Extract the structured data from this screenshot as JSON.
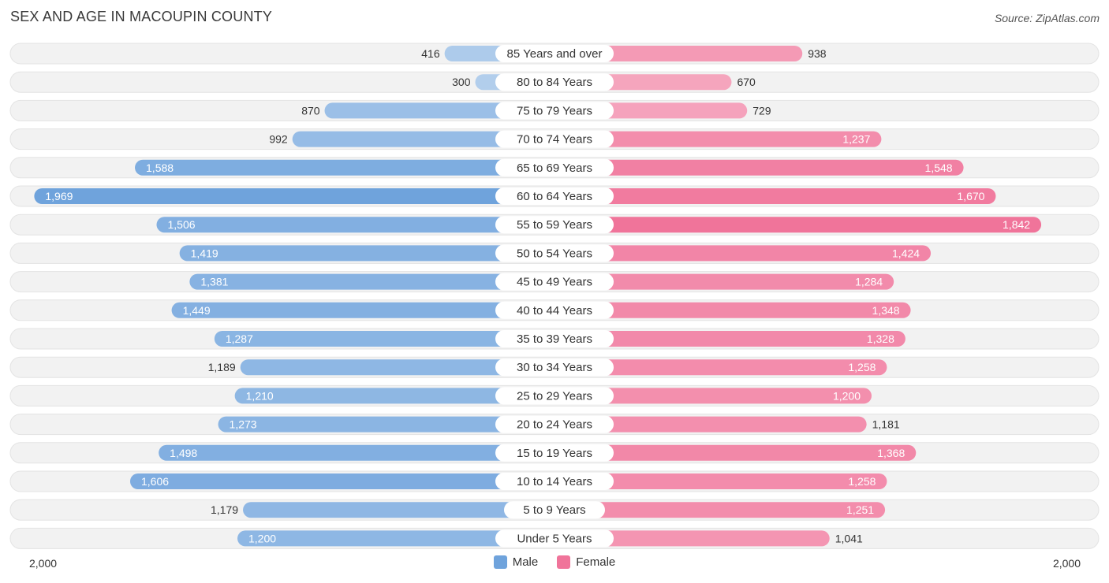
{
  "title": "SEX AND AGE IN MACOUPIN COUNTY",
  "source": "Source: ZipAtlas.com",
  "chart_data": {
    "type": "bar",
    "orientation": "horizontal-diverging",
    "categories": [
      "85 Years and over",
      "80 to 84 Years",
      "75 to 79 Years",
      "70 to 74 Years",
      "65 to 69 Years",
      "60 to 64 Years",
      "55 to 59 Years",
      "50 to 54 Years",
      "45 to 49 Years",
      "40 to 44 Years",
      "35 to 39 Years",
      "30 to 34 Years",
      "25 to 29 Years",
      "20 to 24 Years",
      "15 to 19 Years",
      "10 to 14 Years",
      "5 to 9 Years",
      "Under 5 Years"
    ],
    "series": [
      {
        "name": "Male",
        "color": "#6fa3dc",
        "values": [
          416,
          300,
          870,
          992,
          1588,
          1969,
          1506,
          1419,
          1381,
          1449,
          1287,
          1189,
          1210,
          1273,
          1498,
          1606,
          1179,
          1200
        ],
        "labels": [
          "416",
          "300",
          "870",
          "992",
          "1,588",
          "1,969",
          "1,506",
          "1,419",
          "1,381",
          "1,449",
          "1,287",
          "1,189",
          "1,210",
          "1,273",
          "1,498",
          "1,606",
          "1,179",
          "1,200"
        ]
      },
      {
        "name": "Female",
        "color": "#f0749a",
        "values": [
          938,
          670,
          729,
          1237,
          1548,
          1670,
          1842,
          1424,
          1284,
          1348,
          1328,
          1258,
          1200,
          1181,
          1368,
          1258,
          1251,
          1041
        ],
        "labels": [
          "938",
          "670",
          "729",
          "1,237",
          "1,548",
          "1,670",
          "1,842",
          "1,424",
          "1,284",
          "1,348",
          "1,328",
          "1,258",
          "1,200",
          "1,181",
          "1,368",
          "1,258",
          "1,251",
          "1,041"
        ]
      }
    ],
    "xlim": [
      -2000,
      2000
    ],
    "axis_left_label": "2,000",
    "axis_right_label": "2,000",
    "legend_position": "bottom-center"
  }
}
